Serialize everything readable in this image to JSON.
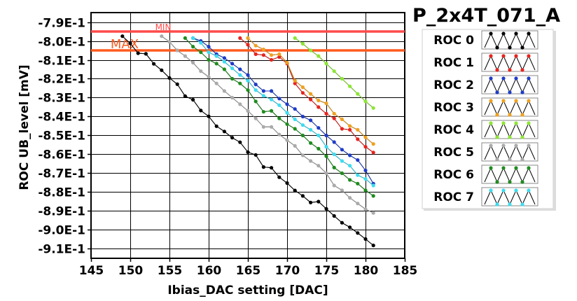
{
  "chart_data": {
    "type": "line",
    "title": "P_2x4T_071_A",
    "xlabel": "Ibias_DAC setting [DAC]",
    "ylabel": "ROC UB_level [mV]",
    "xlim": [
      145,
      185
    ],
    "ylim": [
      -0.915,
      -0.785
    ],
    "x_ticks": [
      145,
      150,
      155,
      160,
      165,
      170,
      175,
      180,
      185
    ],
    "x_tick_labels": [
      "145",
      "150",
      "155",
      "160",
      "165",
      "170",
      "175",
      "180",
      "185"
    ],
    "y_ticks": [
      -0.79,
      -0.8,
      -0.81,
      -0.82,
      -0.83,
      -0.84,
      -0.85,
      -0.86,
      -0.87,
      -0.88,
      -0.89,
      -0.9,
      -0.91
    ],
    "y_tick_labels": [
      "-7.9E-1",
      "-8.0E-1",
      "-8.1E-1",
      "-8.2E-1",
      "-8.3E-1",
      "-8.4E-1",
      "-8.5E-1",
      "-8.6E-1",
      "-8.7E-1",
      "-8.8E-1",
      "-8.9E-1",
      "-9.0E-1",
      "-9.1E-1"
    ],
    "grid": true,
    "legend_position": "right",
    "reference_lines": [
      {
        "label": "MIN",
        "y": -0.795,
        "color": "#ff4a4a"
      },
      {
        "label": "MAX",
        "y": -0.805,
        "color": "#ff5a1e"
      }
    ],
    "series": [
      {
        "name": "ROC 0",
        "color": "#000000",
        "x": [
          149,
          150,
          151,
          152,
          153,
          154,
          155,
          156,
          157,
          158,
          159,
          160,
          161,
          162,
          163,
          164,
          165,
          166,
          167,
          168,
          169,
          170,
          171,
          172,
          173,
          174,
          175,
          176,
          177,
          178,
          179,
          180,
          181
        ],
        "y": [
          -0.7975,
          -0.8013,
          -0.8065,
          -0.8068,
          -0.8121,
          -0.8155,
          -0.8196,
          -0.8229,
          -0.8292,
          -0.8311,
          -0.8368,
          -0.8399,
          -0.8451,
          -0.8479,
          -0.8512,
          -0.8536,
          -0.8588,
          -0.8603,
          -0.8667,
          -0.8671,
          -0.8721,
          -0.8752,
          -0.8791,
          -0.882,
          -0.8855,
          -0.885,
          -0.8888,
          -0.8926,
          -0.8962,
          -0.8986,
          -0.9016,
          -0.9048,
          -0.9082
        ]
      },
      {
        "name": "ROC 1",
        "color": "#e8231e",
        "x": [
          164,
          165,
          166,
          167,
          168,
          169,
          170,
          171,
          172,
          173,
          174,
          175,
          176,
          177,
          178,
          179,
          180,
          181
        ],
        "y": [
          -0.7985,
          -0.802,
          -0.807,
          -0.8075,
          -0.81,
          -0.8085,
          -0.812,
          -0.8225,
          -0.8275,
          -0.831,
          -0.835,
          -0.8385,
          -0.841,
          -0.8465,
          -0.847,
          -0.852,
          -0.856,
          -0.859
        ]
      },
      {
        "name": "ROC 2",
        "color": "#1e3cc8",
        "x": [
          158,
          159,
          160,
          161,
          162,
          163,
          164,
          165,
          166,
          167,
          168,
          169,
          170,
          171,
          172,
          173,
          174,
          175,
          176,
          177,
          178,
          179,
          180,
          181
        ],
        "y": [
          -0.7985,
          -0.8,
          -0.803,
          -0.807,
          -0.809,
          -0.812,
          -0.815,
          -0.818,
          -0.823,
          -0.8265,
          -0.8265,
          -0.8305,
          -0.8335,
          -0.836,
          -0.84,
          -0.842,
          -0.846,
          -0.85,
          -0.8535,
          -0.8575,
          -0.8605,
          -0.863,
          -0.8685,
          -0.8755
        ]
      },
      {
        "name": "ROC 3",
        "color": "#f0a01e",
        "x": [
          165,
          166,
          167,
          168,
          169,
          170,
          171,
          172,
          173,
          174,
          175,
          176,
          177,
          178,
          179,
          180,
          181
        ],
        "y": [
          -0.7985,
          -0.8025,
          -0.8045,
          -0.8075,
          -0.807,
          -0.8115,
          -0.821,
          -0.8245,
          -0.828,
          -0.8315,
          -0.833,
          -0.8385,
          -0.8415,
          -0.845,
          -0.847,
          -0.851,
          -0.8545
        ]
      },
      {
        "name": "ROC 4",
        "color": "#8ce632",
        "x": [
          171,
          172,
          173,
          174,
          175,
          176,
          177,
          178,
          179,
          180,
          181
        ],
        "y": [
          -0.7985,
          -0.8015,
          -0.805,
          -0.808,
          -0.812,
          -0.816,
          -0.82,
          -0.824,
          -0.828,
          -0.832,
          -0.8355
        ]
      },
      {
        "name": "ROC 5",
        "color": "#aaaaaa",
        "x": [
          154,
          155,
          156,
          157,
          158,
          159,
          160,
          161,
          162,
          163,
          164,
          165,
          166,
          167,
          168,
          169,
          170,
          171,
          172,
          173,
          174,
          175,
          176,
          177,
          178,
          179,
          180,
          181
        ],
        "y": [
          -0.7975,
          -0.8005,
          -0.805,
          -0.808,
          -0.8115,
          -0.816,
          -0.819,
          -0.8225,
          -0.8265,
          -0.83,
          -0.8335,
          -0.837,
          -0.841,
          -0.8455,
          -0.8455,
          -0.8495,
          -0.8525,
          -0.8555,
          -0.8605,
          -0.8635,
          -0.866,
          -0.87,
          -0.8765,
          -0.879,
          -0.883,
          -0.886,
          -0.889,
          -0.891
        ]
      },
      {
        "name": "ROC 6",
        "color": "#1e8c1e",
        "x": [
          157,
          158,
          159,
          160,
          161,
          162,
          163,
          164,
          165,
          166,
          167,
          168,
          169,
          170,
          171,
          172,
          173,
          174,
          175,
          176,
          177,
          178,
          179,
          180,
          181
        ],
        "y": [
          -0.7985,
          -0.803,
          -0.806,
          -0.81,
          -0.812,
          -0.815,
          -0.82,
          -0.8225,
          -0.826,
          -0.832,
          -0.8375,
          -0.837,
          -0.841,
          -0.844,
          -0.8465,
          -0.85,
          -0.854,
          -0.857,
          -0.861,
          -0.867,
          -0.87,
          -0.8735,
          -0.8755,
          -0.879,
          -0.882
        ]
      },
      {
        "name": "ROC 7",
        "color": "#3cdcf0",
        "x": [
          158,
          159,
          160,
          161,
          162,
          163,
          164,
          165,
          166,
          167,
          168,
          169,
          170,
          171,
          172,
          173,
          174,
          175,
          176,
          177,
          178,
          179,
          180,
          181
        ],
        "y": [
          -0.7985,
          -0.801,
          -0.806,
          -0.808,
          -0.811,
          -0.8145,
          -0.818,
          -0.821,
          -0.826,
          -0.829,
          -0.831,
          -0.834,
          -0.838,
          -0.8415,
          -0.8445,
          -0.847,
          -0.85,
          -0.856,
          -0.86,
          -0.8635,
          -0.866,
          -0.871,
          -0.873,
          -0.8765
        ]
      }
    ]
  }
}
